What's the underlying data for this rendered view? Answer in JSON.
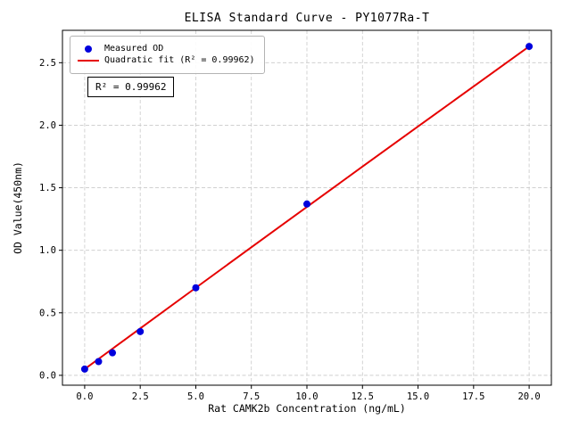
{
  "chart_data": {
    "type": "scatter",
    "title": "ELISA Standard Curve - PY1077Ra-T",
    "xlabel": "Rat CAMK2b Concentration (ng/mL)",
    "ylabel": "OD Value(450nm)",
    "xlim": [
      -1,
      21
    ],
    "ylim": [
      -0.079,
      2.759
    ],
    "xticks": [
      0,
      2.5,
      5,
      7.5,
      10,
      12.5,
      15,
      17.5,
      20
    ],
    "xtick_labels": [
      "0.0",
      "2.5",
      "5.0",
      "7.5",
      "10.0",
      "12.5",
      "15.0",
      "17.5",
      "20.0"
    ],
    "yticks": [
      0,
      0.5,
      1,
      1.5,
      2,
      2.5
    ],
    "ytick_labels": [
      "0.0",
      "0.5",
      "1.0",
      "1.5",
      "2.0",
      "2.5"
    ],
    "grid": true,
    "legend_position": "upper left",
    "annotation": "R² = 0.99962",
    "colors": {
      "points": "#0000dd",
      "fit_line": "#e60000",
      "grid": "#c9c9c9",
      "frame": "#000000"
    },
    "legend": [
      {
        "label": "Measured OD",
        "marker": "dot",
        "color": "#0000dd"
      },
      {
        "label": "Quadratic fit (R² = 0.99962)",
        "marker": "line",
        "color": "#e60000"
      }
    ],
    "series": [
      {
        "name": "Measured OD",
        "type": "scatter",
        "x": [
          0,
          0.625,
          1.25,
          2.5,
          5,
          10,
          20
        ],
        "y": [
          0.05,
          0.11,
          0.18,
          0.35,
          0.7,
          1.37,
          2.63
        ]
      },
      {
        "name": "Quadratic fit",
        "type": "line",
        "x": [
          0,
          2.5,
          5,
          7.5,
          10,
          12.5,
          15,
          17.5,
          20
        ],
        "y": [
          0.05,
          0.375,
          0.7,
          1.024,
          1.347,
          1.669,
          1.99,
          2.31,
          2.63
        ]
      }
    ]
  }
}
